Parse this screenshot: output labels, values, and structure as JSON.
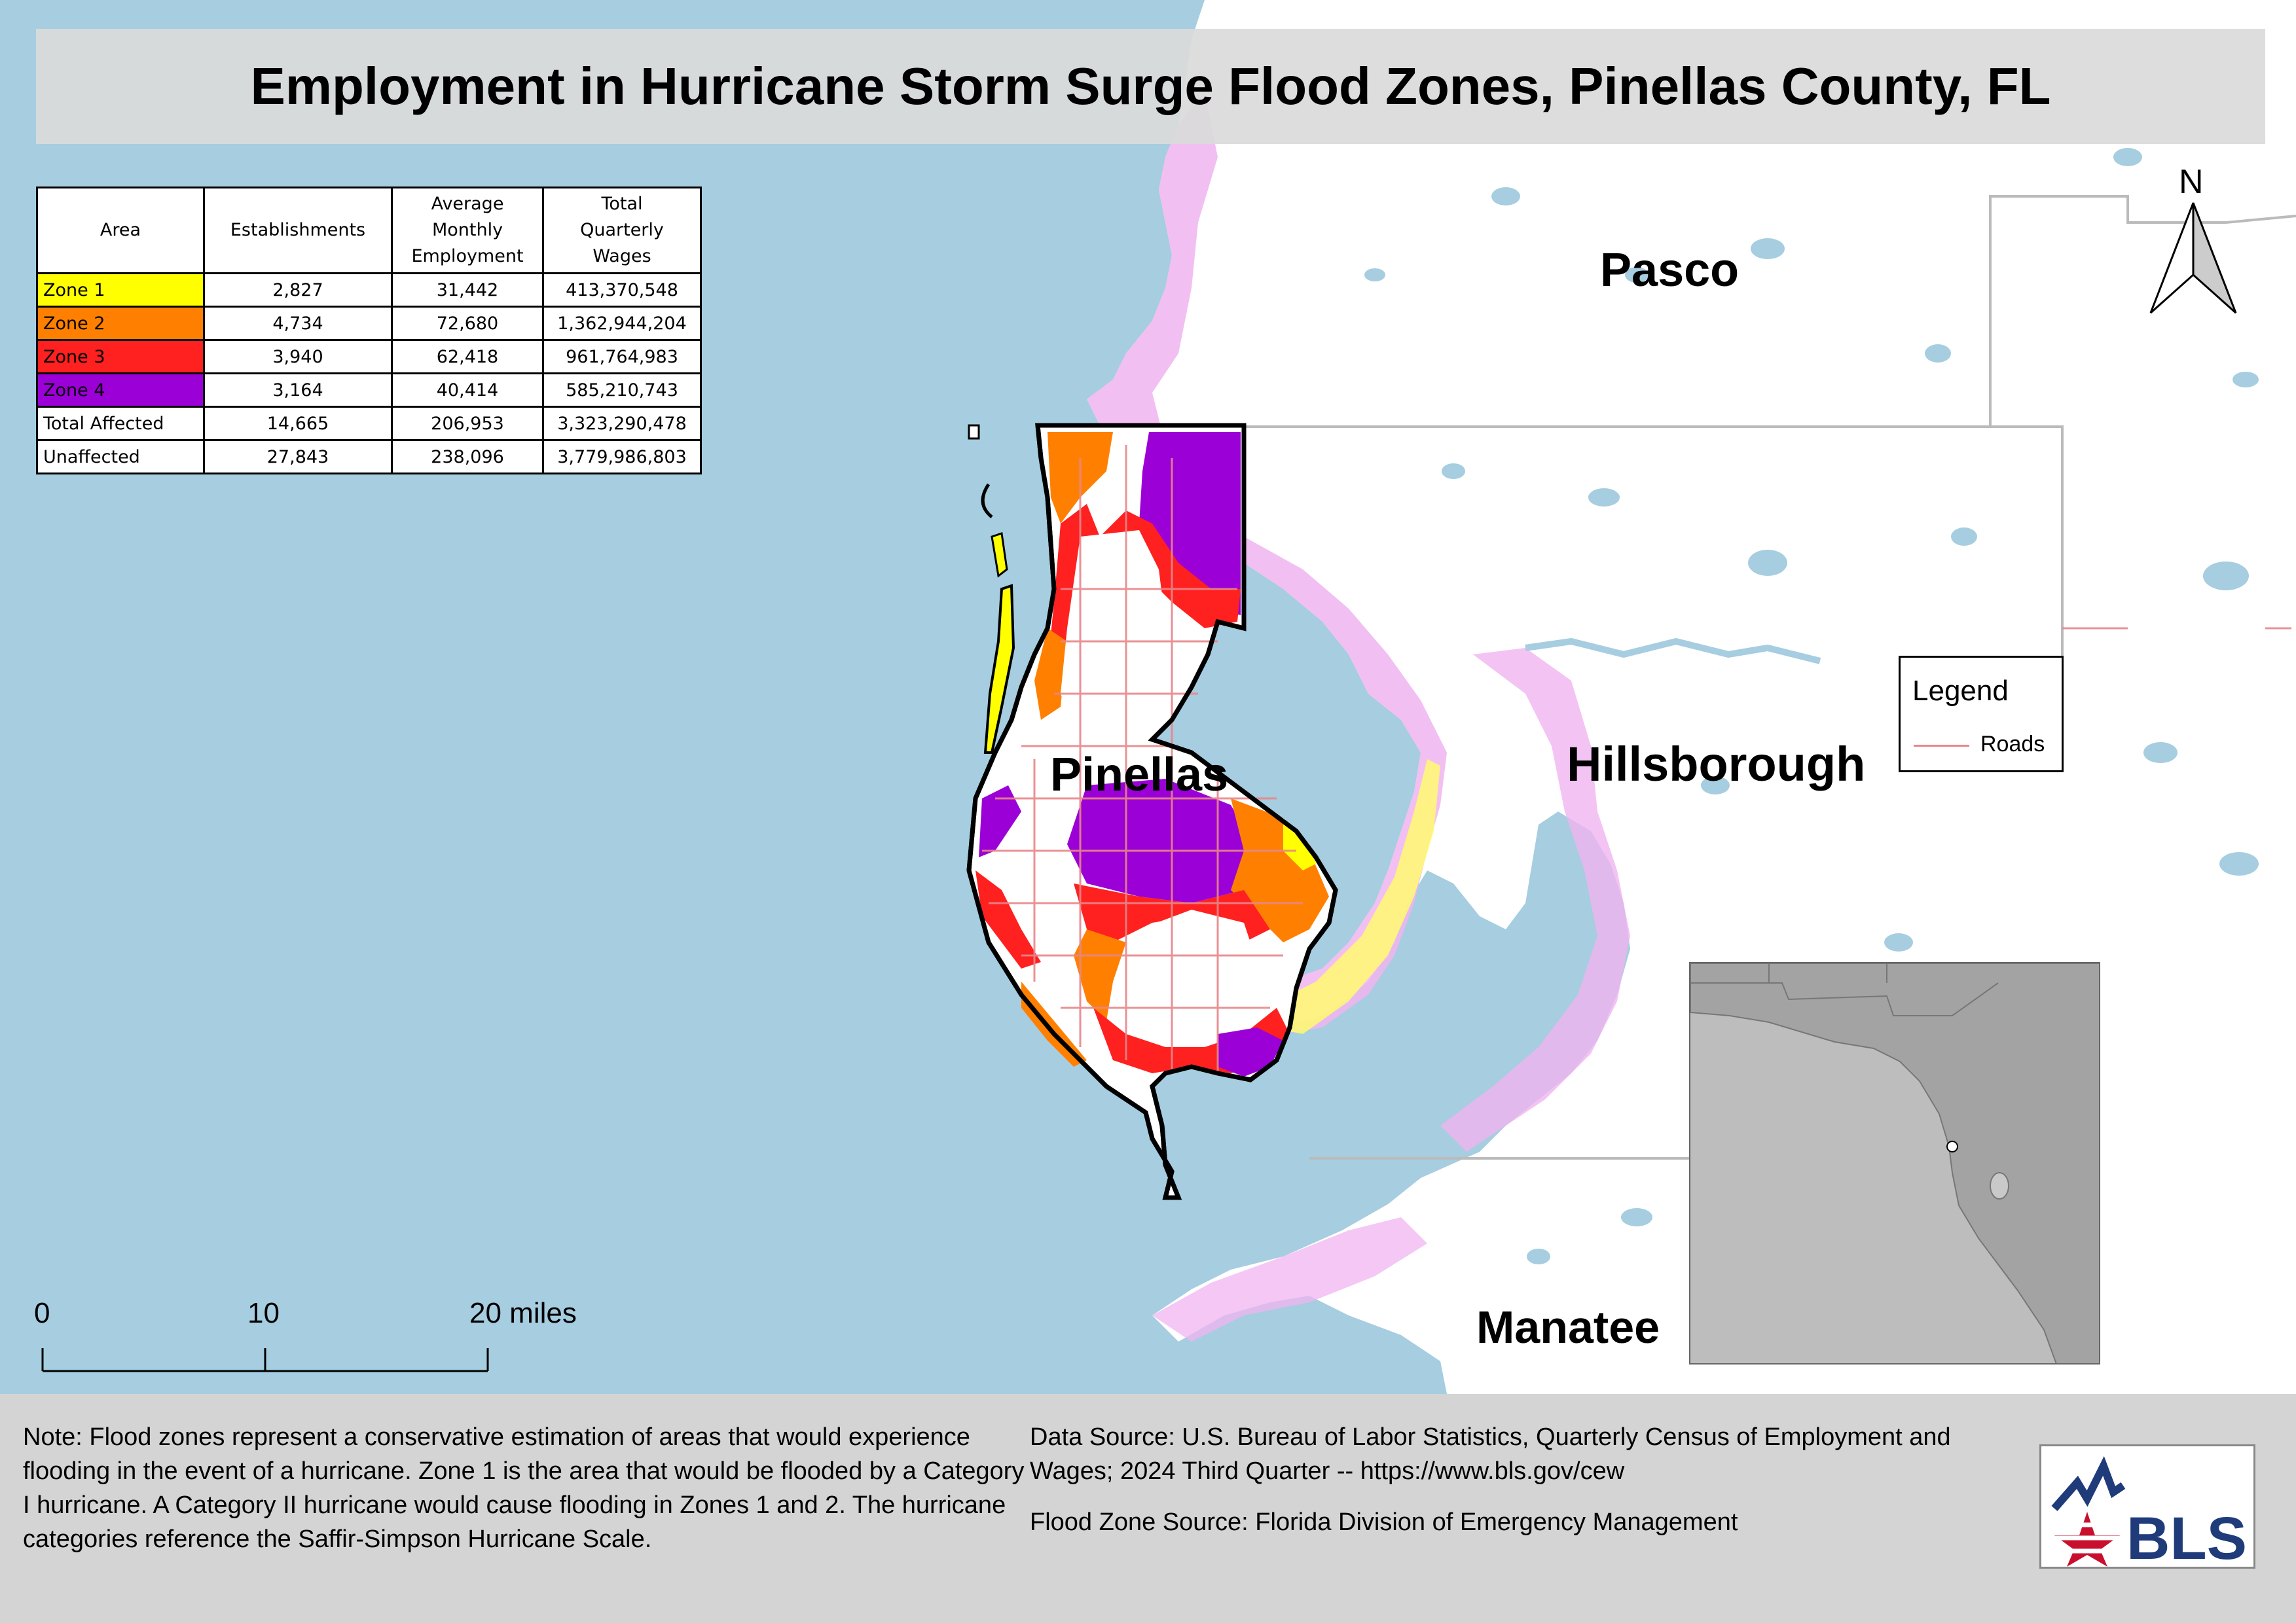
{
  "title": "Employment in Hurricane Storm Surge Flood Zones, Pinellas County, FL",
  "table": {
    "headers": [
      "Area",
      "Establishments",
      "Average Monthly Employment",
      "Total Quarterly Wages"
    ],
    "rows": [
      {
        "area": "Zone 1",
        "color": "#ffff00",
        "establishments": "2,827",
        "employment": "31,442",
        "wages": "413,370,548"
      },
      {
        "area": "Zone 2",
        "color": "#ff8000",
        "establishments": "4,734",
        "employment": "72,680",
        "wages": "1,362,944,204"
      },
      {
        "area": "Zone 3",
        "color": "#ff2020",
        "establishments": "3,940",
        "employment": "62,418",
        "wages": "961,764,983"
      },
      {
        "area": "Zone 4",
        "color": "#9b00d6",
        "establishments": "3,164",
        "employment": "40,414",
        "wages": "585,210,743"
      },
      {
        "area": "Total Affected",
        "color": "#ffffff",
        "establishments": "14,665",
        "employment": "206,953",
        "wages": "3,323,290,478"
      },
      {
        "area": "Unaffected",
        "color": "#ffffff",
        "establishments": "27,843",
        "employment": "238,096",
        "wages": "3,779,986,803"
      }
    ]
  },
  "map_labels": {
    "pasco": "Pasco",
    "pinellas": "Pinellas",
    "hillsborough": "Hillsborough",
    "manatee": "Manatee",
    "north": "N"
  },
  "legend": {
    "title": "Legend",
    "roads_label": "Roads",
    "roads_color": "#e8868a"
  },
  "scale_bar": {
    "ticks": [
      "0",
      "10",
      "20 miles"
    ]
  },
  "footer": {
    "note": "Note: Flood zones represent a conservative estimation of areas that would experience flooding in the event of a hurricane. Zone 1 is the area that would be flooded by a Category I hurricane. A Category II hurricane would cause flooding in Zones 1 and 2. The hurricane categories reference the Saffir-Simpson Hurricane Scale.",
    "data_source": "Data Source: U.S. Bureau of Labor Statistics, Quarterly Census of Employment and Wages; 2024 Third Quarter -- https://www.bls.gov/cew",
    "flood_source": "Flood Zone Source: Florida Division of Emergency Management"
  },
  "logo": {
    "text": "BLS"
  },
  "colors": {
    "water": "#a6cde0",
    "land": "#ffffff",
    "zone1": "#ffff00",
    "zone2": "#ff8000",
    "zone3": "#ff2020",
    "zone4": "#9b00d6",
    "outside_zone": "#f0b4f0"
  }
}
